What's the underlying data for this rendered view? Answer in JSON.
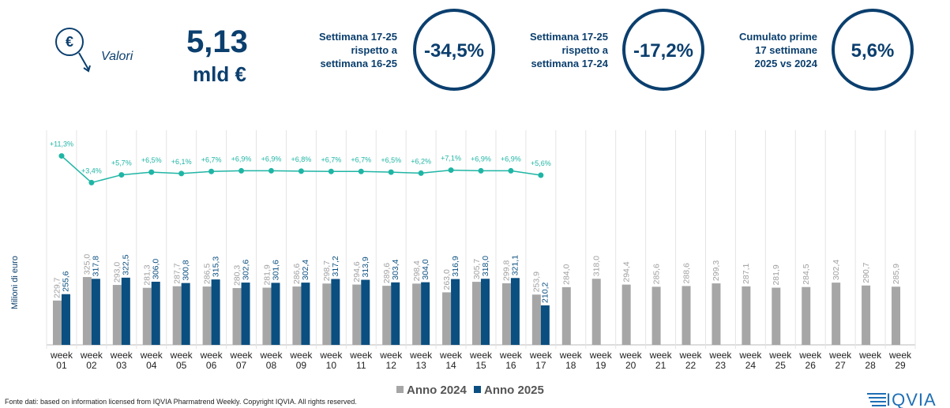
{
  "header": {
    "unit_label": "Valori",
    "total": "5,13",
    "total_unit": "mld €",
    "kpis": [
      {
        "label_lines": [
          "Settimana 17-25",
          "rispetto a",
          "settimana 16-25"
        ],
        "value": "-34,5%"
      },
      {
        "label_lines": [
          "Settimana 17-25",
          "rispetto a",
          "settimana 17-24"
        ],
        "value": "-17,2%"
      },
      {
        "label_lines": [
          "Cumulato prime",
          "17 settimane",
          "2025 vs 2024"
        ],
        "value": "5,6%"
      }
    ]
  },
  "chart_data": {
    "type": "bar",
    "y_label": "Milioni di euro",
    "categories": [
      "week 01",
      "week 02",
      "week 03",
      "week 04",
      "week 05",
      "week 06",
      "week 07",
      "week 08",
      "week 09",
      "week 10",
      "week 11",
      "week 12",
      "week 13",
      "week 14",
      "week 15",
      "week 16",
      "week 17",
      "week 18",
      "week 19",
      "week 20",
      "week 21",
      "week 22",
      "week 23",
      "week 24",
      "week 25",
      "week 26",
      "week 27",
      "week 28",
      "week 29"
    ],
    "ylim": [
      50,
      370
    ],
    "y2lim": [
      0,
      14
    ],
    "series": [
      {
        "name": "Anno 2024",
        "color": "#a6a6a6",
        "values": [
          229.7,
          325.0,
          293.0,
          281.3,
          287.7,
          286.5,
          280.3,
          281.9,
          286.6,
          298.7,
          294.6,
          289.6,
          298.4,
          263.0,
          305.7,
          299.8,
          253.9,
          284.0,
          318.0,
          294.4,
          285.6,
          288.6,
          299.3,
          287.1,
          281.9,
          284.5,
          302.4,
          290.7,
          285.9
        ],
        "value_labels": [
          "229,7",
          "325,0",
          "293,0",
          "281,3",
          "287,7",
          "286,5",
          "280,3",
          "281,9",
          "286,6",
          "298,7",
          "294,6",
          "289,6",
          "298,4",
          "263,0",
          "305,7",
          "299,8",
          "253,9",
          "284,0",
          "318,0",
          "294,4",
          "285,6",
          "288,6",
          "299,3",
          "287,1",
          "281,9",
          "284,5",
          "302,4",
          "290,7",
          "285,9"
        ]
      },
      {
        "name": "Anno 2025",
        "color": "#0b4f80",
        "values": [
          255.6,
          317.8,
          322.5,
          306.0,
          300.8,
          315.3,
          302.6,
          301.6,
          302.4,
          317.2,
          313.9,
          303.4,
          304.0,
          316.9,
          318.0,
          321.1,
          210.2,
          null,
          null,
          null,
          null,
          null,
          null,
          null,
          null,
          null,
          null,
          null,
          null
        ],
        "value_labels": [
          "255,6",
          "317,8",
          "322,5",
          "306,0",
          "300,8",
          "315,3",
          "302,6",
          "301,6",
          "302,4",
          "317,2",
          "313,9",
          "303,4",
          "304,0",
          "316,9",
          "318,0",
          "321,1",
          "210,2",
          null,
          null,
          null,
          null,
          null,
          null,
          null,
          null,
          null,
          null,
          null,
          null
        ]
      }
    ],
    "overlay": {
      "type": "line",
      "axis": "y2",
      "color": "#1fb5a5",
      "values": [
        11.3,
        3.4,
        5.7,
        6.5,
        6.1,
        6.7,
        6.9,
        6.9,
        6.8,
        6.7,
        6.7,
        6.5,
        6.2,
        7.1,
        6.9,
        6.9,
        5.6,
        null,
        null,
        null,
        null,
        null,
        null,
        null,
        null,
        null,
        null,
        null,
        null
      ],
      "value_labels": [
        "+11,3%",
        "+3,4%",
        "+5,7%",
        "+6,5%",
        "+6,1%",
        "+6,7%",
        "+6,9%",
        "+6,9%",
        "+6,8%",
        "+6,7%",
        "+6,7%",
        "+6,5%",
        "+6,2%",
        "+7,1%",
        "+6,9%",
        "+6,9%",
        "+5,6%",
        null,
        null,
        null,
        null,
        null,
        null,
        null,
        null,
        null,
        null,
        null,
        null
      ]
    }
  },
  "source": "Fonte dati: based on information licensed from IQVIA Pharmatrend Weekly. Copyright IQVIA. All rights reserved.",
  "logo": "IQVIA"
}
